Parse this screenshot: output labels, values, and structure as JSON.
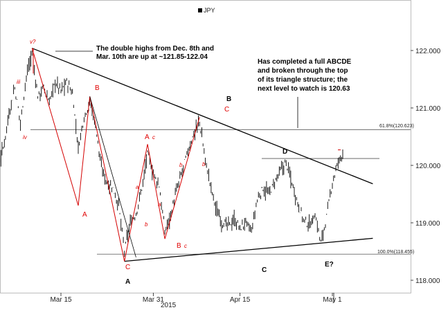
{
  "chart_data": {
    "type": "candlestick",
    "legend": [
      "JPY"
    ],
    "legend_placement": "top-center",
    "x_tick_labels": [
      "Mar 15",
      "Mar 31",
      "Apr 15",
      "May 1"
    ],
    "x_year_label": "2015",
    "y_tick_labels": [
      "122.000",
      "121.000",
      "120.000",
      "119.000",
      "118.000"
    ],
    "y_ticks": [
      122,
      121,
      120,
      119,
      118
    ],
    "ylim": [
      117.55,
      122.8
    ],
    "grid": false,
    "fib_levels": [
      {
        "label": "61.8%(120.623)",
        "value": 120.623
      },
      {
        "label": "100.0%(118.455)",
        "value": 118.455
      }
    ],
    "resistance_d_level": 120.12,
    "triangle_upper_line": [
      {
        "date": "2015-03-10",
        "value": 122.04
      },
      {
        "date": "2015-05-08",
        "value": 119.68
      }
    ],
    "triangle_lower_line": [
      {
        "date": "2015-03-26",
        "value": 118.33
      },
      {
        "date": "2015-05-08",
        "value": 118.73
      }
    ],
    "red_wave_path": [
      {
        "date": "2015-03-10",
        "value": 122.04
      },
      {
        "date": "2015-03-18",
        "value": 119.3
      },
      {
        "date": "2015-03-20",
        "value": 121.2
      },
      {
        "date": "2015-03-26",
        "value": 118.33
      },
      {
        "date": "2015-03-30",
        "value": 120.37
      },
      {
        "date": "2015-04-02",
        "value": 118.72
      },
      {
        "date": "2015-04-08",
        "value": 120.84
      }
    ],
    "black_wave_path": [
      {
        "date": "2015-03-20",
        "value": 121.2
      },
      {
        "date": "2015-03-28",
        "value": 118.4
      }
    ],
    "ohlc_path": [
      {
        "date": "2015-03-01",
        "value": 119.8
      },
      {
        "date": "2015-03-02",
        "value": 119.9
      },
      {
        "date": "2015-03-03",
        "value": 120.15
      },
      {
        "date": "2015-03-04",
        "value": 119.95
      },
      {
        "date": "2015-03-05",
        "value": 120.3
      },
      {
        "date": "2015-03-06",
        "value": 120.9
      },
      {
        "date": "2015-03-07",
        "value": 121.35
      },
      {
        "date": "2015-03-08",
        "value": 120.75
      },
      {
        "date": "2015-03-09",
        "value": 121.55
      },
      {
        "date": "2015-03-10",
        "value": 121.95
      },
      {
        "date": "2015-03-11",
        "value": 121.2
      },
      {
        "date": "2015-03-12",
        "value": 121.35
      },
      {
        "date": "2015-03-13",
        "value": 121.1
      },
      {
        "date": "2015-03-14",
        "value": 121.45
      },
      {
        "date": "2015-03-15",
        "value": 121.3
      },
      {
        "date": "2015-03-16",
        "value": 121.45
      },
      {
        "date": "2015-03-17",
        "value": 121.25
      },
      {
        "date": "2015-03-18",
        "value": 120.3
      },
      {
        "date": "2015-03-19",
        "value": 120.85
      },
      {
        "date": "2015-03-20",
        "value": 121.1
      },
      {
        "date": "2015-03-21",
        "value": 120.7
      },
      {
        "date": "2015-03-22",
        "value": 119.95
      },
      {
        "date": "2015-03-23",
        "value": 119.7
      },
      {
        "date": "2015-03-24",
        "value": 119.6
      },
      {
        "date": "2015-03-25",
        "value": 119.3
      },
      {
        "date": "2015-03-26",
        "value": 118.5
      },
      {
        "date": "2015-03-27",
        "value": 119.0
      },
      {
        "date": "2015-03-28",
        "value": 119.15
      },
      {
        "date": "2015-03-29",
        "value": 119.6
      },
      {
        "date": "2015-03-30",
        "value": 120.2
      },
      {
        "date": "2015-03-31",
        "value": 119.85
      },
      {
        "date": "2015-04-01",
        "value": 119.65
      },
      {
        "date": "2015-04-02",
        "value": 118.85
      },
      {
        "date": "2015-04-03",
        "value": 119.15
      },
      {
        "date": "2015-04-04",
        "value": 119.55
      },
      {
        "date": "2015-04-05",
        "value": 119.9
      },
      {
        "date": "2015-04-06",
        "value": 120.25
      },
      {
        "date": "2015-04-07",
        "value": 120.55
      },
      {
        "date": "2015-04-08",
        "value": 120.75
      },
      {
        "date": "2015-04-09",
        "value": 120.1
      },
      {
        "date": "2015-04-10",
        "value": 119.6
      },
      {
        "date": "2015-04-11",
        "value": 119.2
      },
      {
        "date": "2015-04-12",
        "value": 119.0
      },
      {
        "date": "2015-04-13",
        "value": 118.95
      },
      {
        "date": "2015-04-14",
        "value": 119.05
      },
      {
        "date": "2015-04-15",
        "value": 118.9
      },
      {
        "date": "2015-04-16",
        "value": 119.0
      },
      {
        "date": "2015-04-17",
        "value": 118.85
      },
      {
        "date": "2015-04-18",
        "value": 119.4
      },
      {
        "date": "2015-04-19",
        "value": 119.6
      },
      {
        "date": "2015-04-20",
        "value": 119.5
      },
      {
        "date": "2015-04-21",
        "value": 119.7
      },
      {
        "date": "2015-04-22",
        "value": 119.9
      },
      {
        "date": "2015-04-23",
        "value": 120.05
      },
      {
        "date": "2015-04-24",
        "value": 119.7
      },
      {
        "date": "2015-04-25",
        "value": 119.35
      },
      {
        "date": "2015-04-26",
        "value": 119.05
      },
      {
        "date": "2015-04-27",
        "value": 118.95
      },
      {
        "date": "2015-04-28",
        "value": 119.15
      },
      {
        "date": "2015-04-29",
        "value": 118.65
      },
      {
        "date": "2015-04-30",
        "value": 119.1
      },
      {
        "date": "2015-05-01",
        "value": 119.7
      },
      {
        "date": "2015-05-02",
        "value": 120.05
      },
      {
        "date": "2015-05-03",
        "value": 120.27
      }
    ],
    "annotations": {
      "double_highs": "The double highs from Dec. 8th and Mar. 10th are up at ~121.85-122.04",
      "completed": "Has completed a full ABCDE and  broken through the top of its triangle structure; the next level to watch is 120.63"
    }
  },
  "legend_label": "JPY",
  "year_label": "2015",
  "double_highs_lines": [
    "The double highs from Dec. 8th and",
    "Mar. 10th are up at ~121.85-122.04"
  ],
  "completed_lines": [
    "Has completed a full ABCDE",
    "and  broken through the top",
    "of its triangle structure; the",
    "next level to watch is 120.63"
  ],
  "fib_618_label": "61.8%(120.623)",
  "fib_100_label": "100.0%(118.455)",
  "wave_labels_red": {
    "v": "v?",
    "iii": "iii",
    "iv": "iv",
    "B1": "B",
    "A1": "A",
    "C1": "C",
    "Ac": "A",
    "c_small_1": "c",
    "a_small_1": "a",
    "b_small_1": "b",
    "b_small_2": "b",
    "a_small_2": "a",
    "b_small_3": "b",
    "Bc": "B",
    "c_small_2": "c",
    "C2": "C"
  },
  "wave_labels_black": {
    "A": "A",
    "B": "B",
    "C": "C",
    "D": "D",
    "E": "E?"
  }
}
